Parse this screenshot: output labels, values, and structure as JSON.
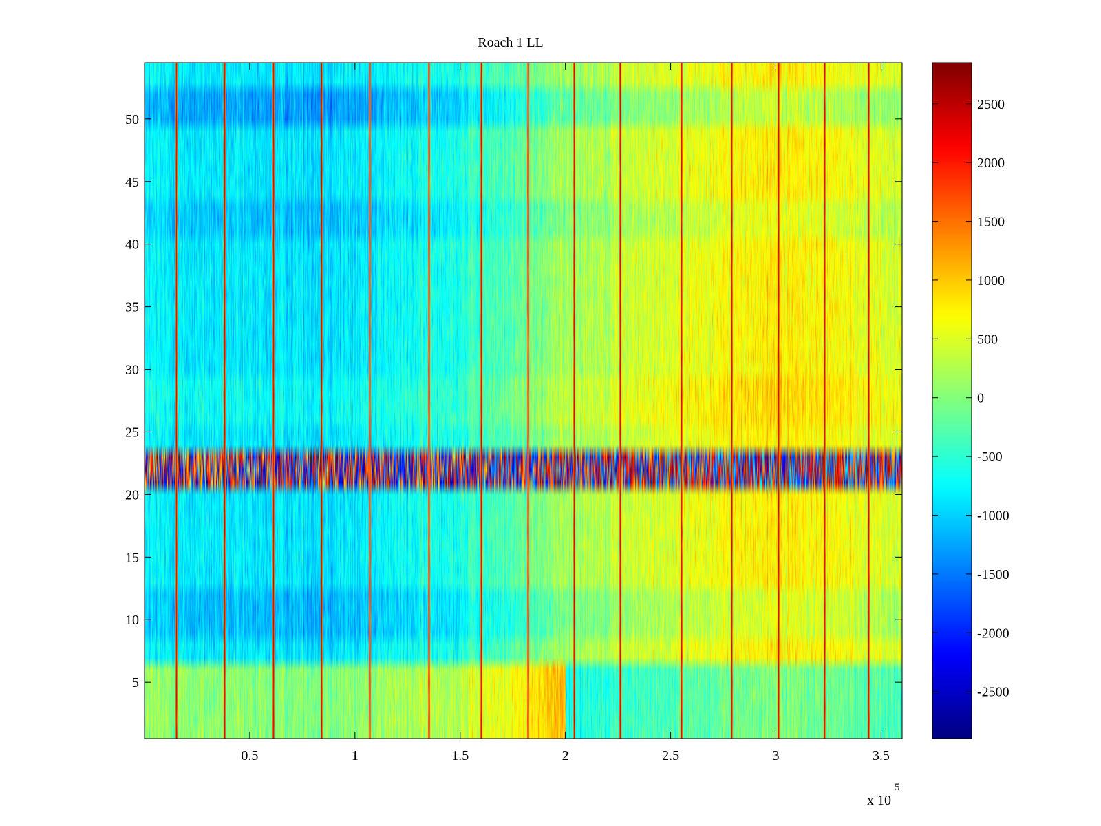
{
  "chart_data": {
    "type": "heatmap",
    "title": "Roach 1 LL",
    "xlabel": "",
    "ylabel": "",
    "x_exponent_label": "x 10",
    "x_exponent_power": "5",
    "xlim": [
      0,
      3.6
    ],
    "ylim": [
      0.5,
      54.5
    ],
    "x_ticks": [
      0.5,
      1,
      1.5,
      2,
      2.5,
      3,
      3.5
    ],
    "x_tick_labels": [
      "0.5",
      "1",
      "1.5",
      "2",
      "2.5",
      "3",
      "3.5"
    ],
    "y_ticks": [
      5,
      10,
      15,
      20,
      25,
      30,
      35,
      40,
      45,
      50
    ],
    "y_tick_labels": [
      "5",
      "10",
      "15",
      "20",
      "25",
      "30",
      "35",
      "40",
      "45",
      "50"
    ],
    "rows": 54,
    "colorbar": {
      "colormap": "jet",
      "clim": [
        -2900,
        2850
      ],
      "ticks": [
        2500,
        2000,
        1500,
        1000,
        500,
        0,
        -500,
        -1000,
        -1500,
        -2000,
        -2500
      ],
      "tick_labels": [
        "2500",
        "2000",
        "1500",
        "1000",
        "500",
        "0",
        "-500",
        "-1000",
        "-1500",
        "-2000",
        "-2500"
      ]
    },
    "stripe_positions_x": [
      0.15,
      0.38,
      0.61,
      0.84,
      1.07,
      1.35,
      1.6,
      1.82,
      2.04,
      2.26,
      2.55,
      2.79,
      3.01,
      3.23,
      3.44
    ],
    "column_trend": [
      {
        "x": 0.0,
        "value": -800
      },
      {
        "x": 0.5,
        "value": -900
      },
      {
        "x": 1.0,
        "value": -850
      },
      {
        "x": 1.5,
        "value": -550
      },
      {
        "x": 1.8,
        "value": -200
      },
      {
        "x": 2.0,
        "value": 200
      },
      {
        "x": 2.5,
        "value": 500
      },
      {
        "x": 3.0,
        "value": 800
      },
      {
        "x": 3.3,
        "value": 650
      },
      {
        "x": 3.6,
        "value": 450
      }
    ],
    "row_offsets": [
      {
        "rows": [
          1,
          6
        ],
        "offset": 900,
        "note": "lower rows warmer on left, cooler on right"
      },
      {
        "rows": [
          9,
          12
        ],
        "offset": -250
      },
      {
        "rows": [
          21,
          23
        ],
        "offset": 0,
        "note": "high-variance noisy band spanning -2500 to 2500"
      },
      {
        "rows": [
          26,
          29
        ],
        "offset": 150
      },
      {
        "rows": [
          41,
          43
        ],
        "offset": -200
      },
      {
        "rows": [
          50,
          52
        ],
        "offset": -400
      }
    ]
  }
}
